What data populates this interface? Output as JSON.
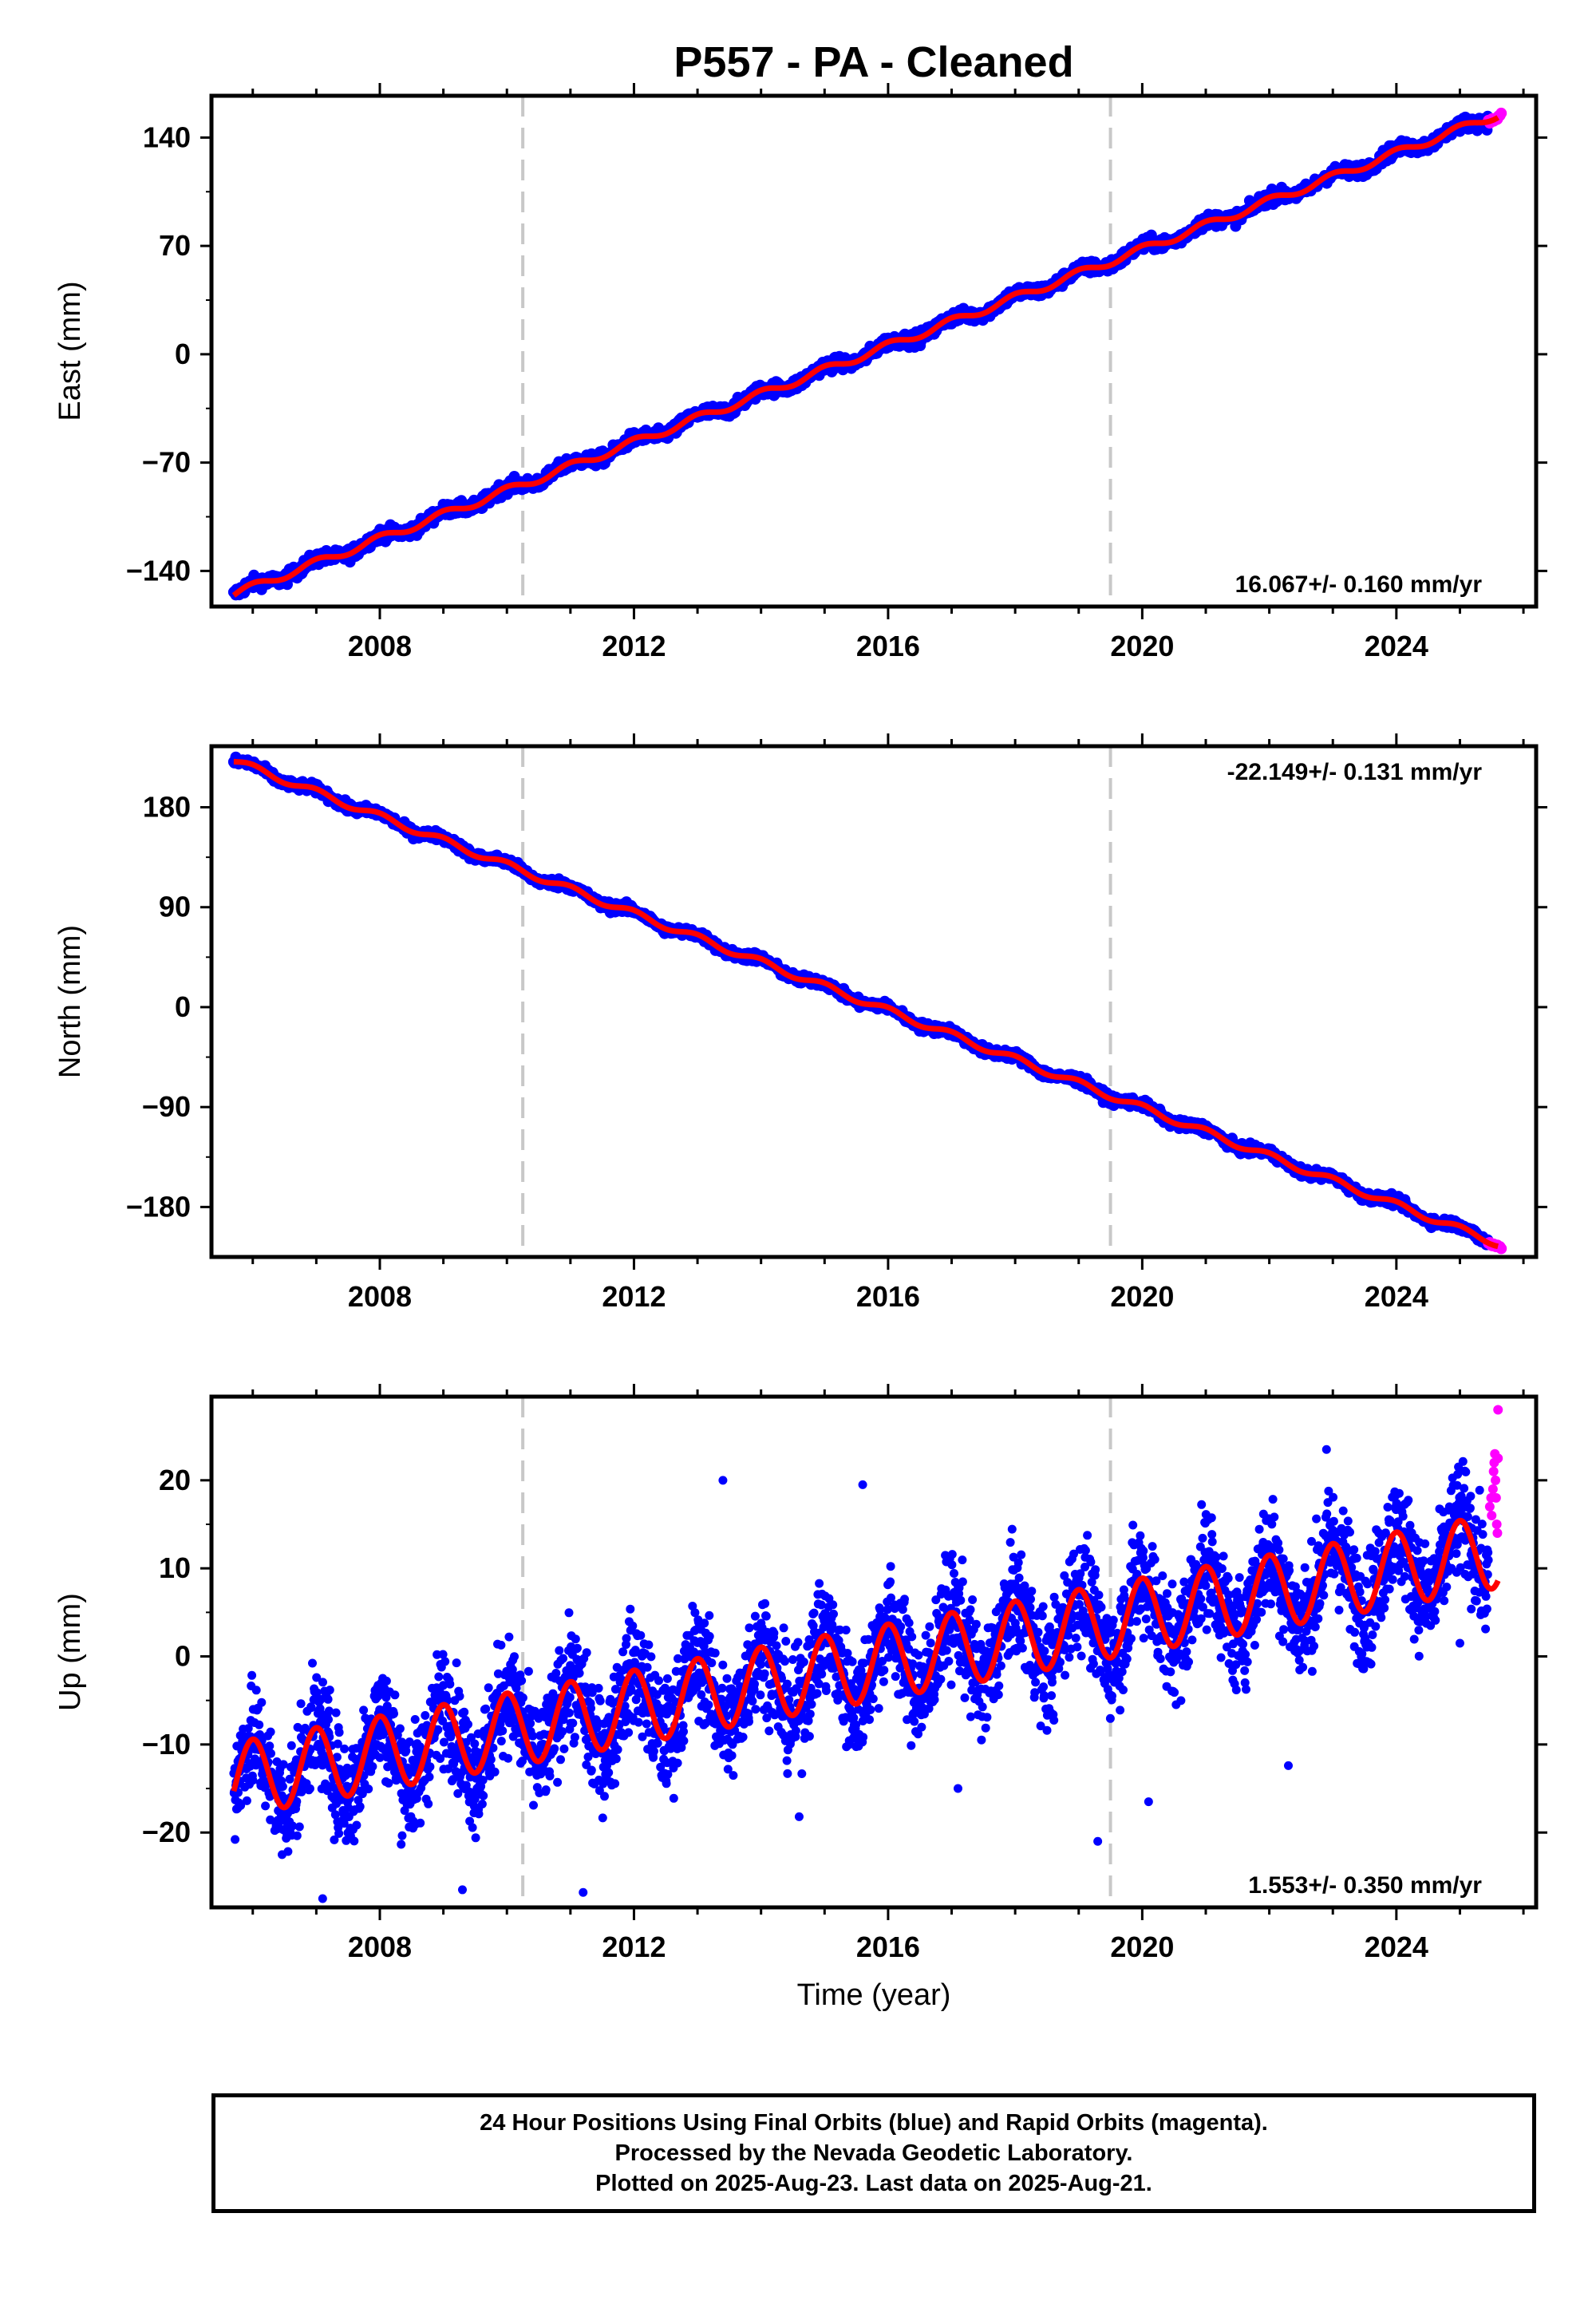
{
  "title": "P557  - PA - Cleaned",
  "chart_data": [
    {
      "type": "scatter",
      "name": "East",
      "ylabel": "East (mm)",
      "xlim": [
        2005.35,
        2026.2
      ],
      "ylim": [
        -163,
        167
      ],
      "yticks": [
        -140,
        -70,
        0,
        70,
        140
      ],
      "yticklabels": [
        "−140",
        "−70",
        "0",
        "70",
        "140"
      ],
      "xticks": [
        2008,
        2012,
        2016,
        2020,
        2024
      ],
      "vlines": [
        2010.25,
        2019.5
      ],
      "rate": "16.067+/- 0.160 mm/yr",
      "rate_position": "bottom-right",
      "model": {
        "x": [
          2005.7,
          2025.6
        ],
        "y": [
          -155,
          155
        ],
        "seasonal_amplitude": 2.5
      },
      "scatter_noise": 3,
      "rapid_x_start": 2025.45
    },
    {
      "type": "scatter",
      "name": "North",
      "ylabel": "North (mm)",
      "xlim": [
        2005.35,
        2026.2
      ],
      "ylim": [
        -225,
        235
      ],
      "yticks": [
        -180,
        -90,
        0,
        90,
        180
      ],
      "yticklabels": [
        "−180",
        "−90",
        "0",
        "90",
        "180"
      ],
      "xticks": [
        2008,
        2012,
        2016,
        2020,
        2024
      ],
      "vlines": [
        2010.25,
        2019.5
      ],
      "rate": "-22.149+/- 0.131 mm/yr",
      "rate_position": "top-right",
      "model": {
        "x": [
          2005.7,
          2025.6
        ],
        "y": [
          222,
          -213
        ],
        "seasonal_amplitude": 3
      },
      "scatter_noise": 3,
      "rapid_x_start": 2025.45
    },
    {
      "type": "scatter",
      "name": "Up",
      "ylabel": "Up (mm)",
      "xlabel": "Time (year)",
      "xlim": [
        2005.35,
        2026.2
      ],
      "ylim": [
        -28.5,
        29.5
      ],
      "yticks": [
        -20,
        -10,
        0,
        10,
        20
      ],
      "yticklabels": [
        "−20",
        "−10",
        "0",
        "10",
        "20"
      ],
      "xticks": [
        2008,
        2012,
        2016,
        2020,
        2024
      ],
      "vlines": [
        2010.25,
        2019.5
      ],
      "rate": "1.553+/- 0.350 mm/yr",
      "rate_position": "bottom-right",
      "model": {
        "x": [
          2005.7,
          2025.6
        ],
        "y": [
          -14,
          12
        ],
        "seasonal_amplitude": 4.2
      },
      "scatter_noise": 4.5,
      "rapid_x_start": 2025.45,
      "rapid_points": [
        [
          2025.47,
          17
        ],
        [
          2025.49,
          18
        ],
        [
          2025.5,
          16
        ],
        [
          2025.52,
          19
        ],
        [
          2025.53,
          21
        ],
        [
          2025.54,
          22
        ],
        [
          2025.55,
          23
        ],
        [
          2025.56,
          20
        ],
        [
          2025.57,
          18
        ],
        [
          2025.58,
          15
        ],
        [
          2025.59,
          14
        ],
        [
          2025.6,
          22.5
        ],
        [
          2025.6,
          28
        ]
      ],
      "outliers": [
        [
          2007.1,
          -27.5
        ],
        [
          2009.3,
          -26.5
        ],
        [
          2011.2,
          -26.8
        ],
        [
          2014.6,
          -18.2
        ],
        [
          2017.1,
          -15
        ],
        [
          2019.3,
          -21
        ],
        [
          2020.1,
          -16.5
        ],
        [
          2022.3,
          -12.4
        ],
        [
          2025.0,
          1.5
        ],
        [
          2013.4,
          20
        ],
        [
          2015.6,
          19.5
        ],
        [
          2022.9,
          23.5
        ]
      ]
    }
  ],
  "xticklabels": [
    "2008",
    "2012",
    "2016",
    "2020",
    "2024"
  ],
  "colors": {
    "final_orbits": "#0000ff",
    "rapid_orbits": "#ff00ff",
    "model": "#ff0000",
    "vline": "#c8c8c8",
    "frame": "#000000"
  },
  "footer": {
    "line1": "24 Hour Positions Using Final Orbits (blue) and Rapid Orbits (magenta).",
    "line2": "Processed by the Nevada Geodetic Laboratory.",
    "line3": "Plotted on 2025-Aug-23. Last data on 2025-Aug-21."
  }
}
